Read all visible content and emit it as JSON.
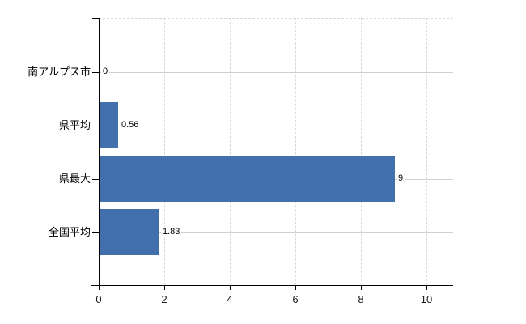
{
  "chart_data": {
    "type": "bar",
    "orientation": "horizontal",
    "title": "",
    "xlabel": "",
    "ylabel": "",
    "categories": [
      "南アルプス市",
      "県平均",
      "県最大",
      "全国平均"
    ],
    "values": [
      0,
      0.56,
      9,
      1.83
    ],
    "value_labels": [
      "0",
      "0.56",
      "9",
      "1.83"
    ],
    "xticks": [
      0,
      2,
      4,
      6,
      8,
      10
    ],
    "xtick_labels": [
      "0",
      "2",
      "4",
      "6",
      "8",
      "10"
    ],
    "xlim": [
      0,
      10.8
    ],
    "grid": {
      "vertical_dashed_at_ticks": true,
      "top_dashed_border": true,
      "solid_row_lines": true
    },
    "legend": false,
    "colors": {
      "bar": "#4170ac",
      "axis": "#000000",
      "grid_dashed": "#d9d9d9",
      "grid_row": "#ccd3cc",
      "text": "#000000",
      "background": "#ffffff"
    }
  }
}
